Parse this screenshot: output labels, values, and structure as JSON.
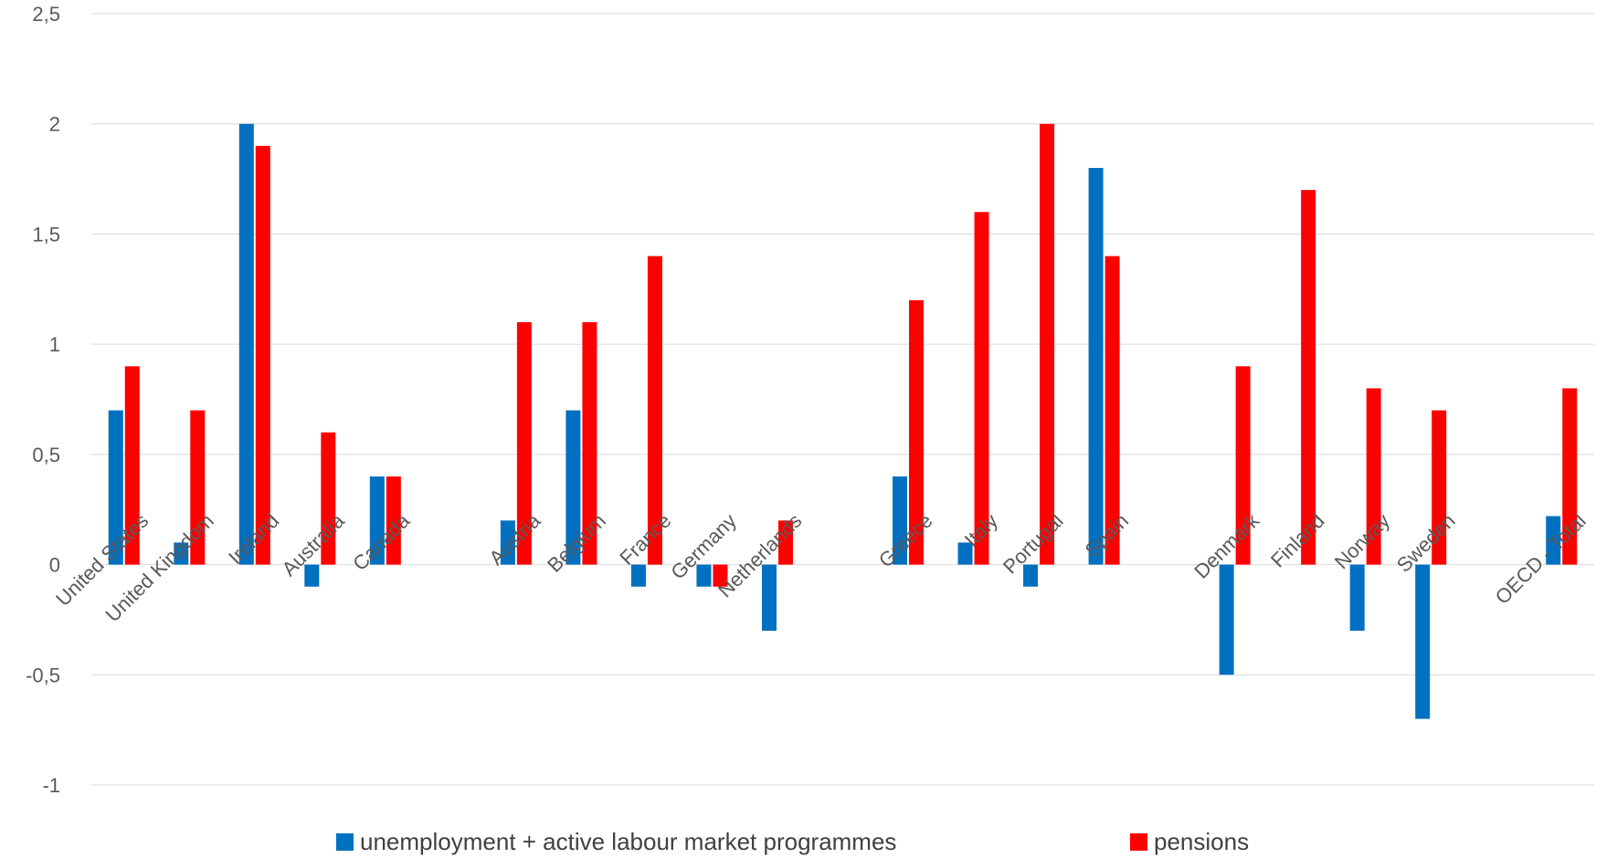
{
  "chart_data": {
    "type": "bar",
    "title": "",
    "xlabel": "",
    "ylabel": "",
    "ylim": [
      -1,
      2.5
    ],
    "y_ticks": [
      -1,
      -0.5,
      0,
      0.5,
      1,
      1.5,
      2,
      2.5
    ],
    "y_tick_labels": [
      "-1",
      "-0,5",
      "0",
      "0,5",
      "1",
      "1,5",
      "2",
      "2,5"
    ],
    "grid": true,
    "legend_position": "bottom",
    "slots": [
      "United States",
      "United Kingdom",
      "Ireland",
      "Australia",
      "Canada",
      "",
      "Austria",
      "Belgium",
      "France",
      "Germany",
      "Netherlands",
      "",
      "Greece",
      "Italy",
      "Portugal",
      "Spain",
      "",
      "Denmark",
      "Finland",
      "Norway",
      "Sweden",
      "",
      "OECD - Total"
    ],
    "categories": [
      "United States",
      "United Kingdom",
      "Ireland",
      "Australia",
      "Canada",
      "Austria",
      "Belgium",
      "France",
      "Germany",
      "Netherlands",
      "Greece",
      "Italy",
      "Portugal",
      "Spain",
      "Denmark",
      "Finland",
      "Norway",
      "Sweden",
      "OECD - Total"
    ],
    "series": [
      {
        "name": "unemployment + active labour market programmes",
        "color": "#0070C0",
        "values": [
          0.7,
          0.1,
          2.0,
          -0.1,
          0.4,
          0.2,
          0.7,
          -0.1,
          -0.1,
          -0.3,
          0.4,
          0.1,
          -0.1,
          1.8,
          -0.5,
          0.0,
          -0.3,
          -0.7,
          0.22
        ]
      },
      {
        "name": "pensions",
        "color": "#FF0000",
        "values": [
          0.9,
          0.7,
          1.9,
          0.6,
          0.4,
          1.1,
          1.1,
          1.4,
          -0.1,
          0.2,
          1.2,
          1.6,
          2.0,
          1.4,
          0.9,
          1.7,
          0.8,
          0.7,
          0.8
        ]
      }
    ]
  }
}
